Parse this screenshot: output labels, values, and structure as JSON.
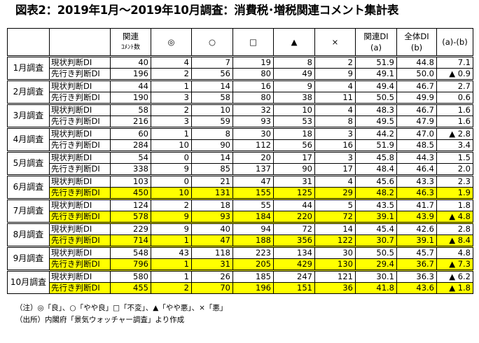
{
  "title": "図表2：2019年1月～2019年10月調査：消費税･増税関連コメント集計表",
  "headers": {
    "count_1": "関連",
    "count_2": "ｺﾒﾝﾄ数",
    "good": "◎",
    "fair": "○",
    "same": "□",
    "worse": "▲",
    "bad": "×",
    "rel_1": "関連DI",
    "rel_2": "(a)",
    "all_1": "全体DI",
    "all_2": "(b)",
    "diff": "(a)-(b)"
  },
  "groups": [
    {
      "month": "1月調査",
      "rows": [
        {
          "type": "現状判断DI",
          "v": [
            "40",
            "4",
            "7",
            "19",
            "8",
            "2",
            "51.9",
            "44.8",
            "7.1"
          ]
        },
        {
          "type": "先行き判断DI",
          "v": [
            "196",
            "2",
            "56",
            "80",
            "49",
            "9",
            "49.1",
            "50.0",
            "▲ 0.9"
          ]
        }
      ]
    },
    {
      "month": "2月調査",
      "rows": [
        {
          "type": "現状判断DI",
          "v": [
            "44",
            "1",
            "14",
            "16",
            "9",
            "4",
            "49.4",
            "46.7",
            "2.7"
          ]
        },
        {
          "type": "先行き判断DI",
          "v": [
            "190",
            "3",
            "58",
            "80",
            "38",
            "11",
            "50.5",
            "49.9",
            "0.6"
          ]
        }
      ]
    },
    {
      "month": "3月調査",
      "rows": [
        {
          "type": "現状判断DI",
          "v": [
            "58",
            "2",
            "10",
            "32",
            "10",
            "4",
            "48.3",
            "46.7",
            "1.6"
          ]
        },
        {
          "type": "先行き判断DI",
          "v": [
            "216",
            "3",
            "59",
            "93",
            "53",
            "8",
            "49.5",
            "47.9",
            "1.6"
          ]
        }
      ]
    },
    {
      "month": "4月調査",
      "rows": [
        {
          "type": "現状判断DI",
          "v": [
            "60",
            "1",
            "8",
            "30",
            "18",
            "3",
            "44.2",
            "47.0",
            "▲ 2.8"
          ]
        },
        {
          "type": "先行き判断DI",
          "v": [
            "284",
            "10",
            "90",
            "112",
            "56",
            "16",
            "51.9",
            "48.5",
            "3.4"
          ]
        }
      ]
    },
    {
      "month": "5月調査",
      "rows": [
        {
          "type": "現状判断DI",
          "v": [
            "54",
            "0",
            "14",
            "20",
            "17",
            "3",
            "45.8",
            "44.3",
            "1.5"
          ]
        },
        {
          "type": "先行き判断DI",
          "v": [
            "338",
            "9",
            "85",
            "137",
            "90",
            "17",
            "48.4",
            "46.4",
            "2.0"
          ]
        }
      ]
    },
    {
      "month": "6月調査",
      "rows": [
        {
          "type": "現状判断DI",
          "v": [
            "103",
            "0",
            "21",
            "47",
            "31",
            "4",
            "45.6",
            "43.3",
            "2.3"
          ]
        },
        {
          "type": "先行き判断DI",
          "highlight": true,
          "v": [
            "450",
            "10",
            "131",
            "155",
            "125",
            "29",
            "48.2",
            "46.3",
            "1.9"
          ]
        }
      ]
    },
    {
      "month": "7月調査",
      "rows": [
        {
          "type": "現状判断DI",
          "v": [
            "124",
            "2",
            "18",
            "55",
            "44",
            "5",
            "43.5",
            "41.7",
            "1.8"
          ]
        },
        {
          "type": "先行き判断DI",
          "highlight": true,
          "v": [
            "578",
            "9",
            "93",
            "184",
            "220",
            "72",
            "39.1",
            "43.9",
            "▲ 4.8"
          ]
        }
      ]
    },
    {
      "month": "8月調査",
      "rows": [
        {
          "type": "現状判断DI",
          "v": [
            "229",
            "9",
            "40",
            "94",
            "72",
            "14",
            "45.4",
            "42.6",
            "2.8"
          ]
        },
        {
          "type": "先行き判断DI",
          "highlight": true,
          "v": [
            "714",
            "1",
            "47",
            "188",
            "356",
            "122",
            "30.7",
            "39.1",
            "▲ 8.4"
          ]
        }
      ]
    },
    {
      "month": "9月調査",
      "rows": [
        {
          "type": "現状判断DI",
          "v": [
            "548",
            "43",
            "118",
            "223",
            "134",
            "30",
            "50.5",
            "45.7",
            "4.8"
          ]
        },
        {
          "type": "先行き判断DI",
          "highlight": true,
          "v": [
            "796",
            "1",
            "31",
            "205",
            "429",
            "130",
            "29.4",
            "36.7",
            "▲ 7.3"
          ]
        }
      ]
    },
    {
      "month": "10月調査",
      "rows": [
        {
          "type": "現状判断DI",
          "v": [
            "580",
            "1",
            "26",
            "185",
            "247",
            "121",
            "30.1",
            "36.3",
            "▲ 6.2"
          ]
        },
        {
          "type": "先行き判断DI",
          "highlight": true,
          "v": [
            "455",
            "2",
            "70",
            "196",
            "151",
            "36",
            "41.8",
            "43.6",
            "▲ 1.8"
          ]
        }
      ]
    }
  ],
  "notes": {
    "note": "（注）◎「良」、○「やや良」□「不変」、▲「やや悪」、×「悪」",
    "source": "（出所）内閣府「景気ウォッチャー調査」より作成"
  },
  "colors": {
    "highlight": "#ffff00"
  }
}
